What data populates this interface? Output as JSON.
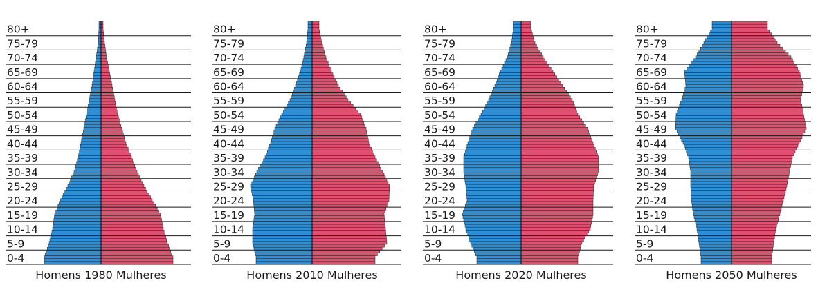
{
  "age_groups": [
    "0-4",
    "5-9",
    "10-14",
    "15-19",
    "20-24",
    "25-29",
    "30-34",
    "35-39",
    "40-44",
    "45-49",
    "50-54",
    "55-59",
    "60-64",
    "65-69",
    "70-74",
    "75-79",
    "80+"
  ],
  "men_label": "Homens",
  "women_label": "Mulheres",
  "colors": {
    "men_fill": "#2f8fd6",
    "women_fill": "#e0506f",
    "stroke": "#1a1a1a"
  },
  "chart_data": [
    {
      "type": "bar",
      "year": "1980",
      "categories": [
        "0-4",
        "5-9",
        "10-14",
        "15-19",
        "20-24",
        "25-29",
        "30-34",
        "35-39",
        "40-44",
        "45-49",
        "50-54",
        "55-59",
        "60-64",
        "65-69",
        "70-74",
        "75-79",
        "80+"
      ],
      "series": [
        {
          "name": "Homens",
          "values": [
            82,
            75,
            70,
            67,
            59,
            48,
            39,
            33,
            29,
            25,
            21,
            17,
            13,
            10,
            7,
            4,
            3
          ]
        },
        {
          "name": "Mulheres",
          "values": [
            104,
            96,
            90,
            86,
            74,
            62,
            52,
            44,
            36,
            30,
            24,
            20,
            16,
            12,
            8,
            5,
            3
          ]
        }
      ]
    },
    {
      "type": "bar",
      "year": "2010",
      "categories": [
        "0-4",
        "5-9",
        "10-14",
        "15-19",
        "20-24",
        "25-29",
        "30-34",
        "35-39",
        "40-44",
        "45-49",
        "50-54",
        "55-59",
        "60-64",
        "65-69",
        "70-74",
        "75-79",
        "80+"
      ],
      "series": [
        {
          "name": "Homens",
          "values": [
            81,
            86,
            86,
            83,
            85,
            89,
            80,
            68,
            60,
            54,
            44,
            32,
            24,
            17,
            12,
            8,
            6
          ]
        },
        {
          "name": "Mulheres",
          "values": [
            91,
            108,
            106,
            104,
            111,
            112,
            102,
            91,
            82,
            78,
            70,
            52,
            38,
            28,
            20,
            14,
            10
          ]
        }
      ]
    },
    {
      "type": "bar",
      "year": "2020",
      "categories": [
        "0-4",
        "5-9",
        "10-14",
        "15-19",
        "20-24",
        "25-29",
        "30-34",
        "35-39",
        "40-44",
        "45-49",
        "50-54",
        "55-59",
        "60-64",
        "65-69",
        "70-74",
        "75-79",
        "80+"
      ],
      "series": [
        {
          "name": "Homens",
          "values": [
            64,
            73,
            80,
            85,
            78,
            80,
            83,
            83,
            77,
            70,
            58,
            47,
            38,
            30,
            20,
            14,
            11
          ]
        },
        {
          "name": "Mulheres",
          "values": [
            82,
            88,
            100,
            104,
            104,
            105,
            112,
            112,
            104,
            96,
            82,
            74,
            60,
            46,
            32,
            20,
            14
          ]
        }
      ]
    },
    {
      "type": "bar",
      "year": "2050",
      "categories": [
        "0-4",
        "5-9",
        "10-14",
        "15-19",
        "20-24",
        "25-29",
        "30-34",
        "35-39",
        "40-44",
        "45-49",
        "50-54",
        "55-59",
        "60-64",
        "65-69",
        "70-74",
        "75-79",
        "80+"
      ],
      "series": [
        {
          "name": "Homens",
          "values": [
            44,
            47,
            50,
            55,
            58,
            59,
            59,
            62,
            70,
            81,
            80,
            72,
            66,
            68,
            52,
            40,
            28
          ]
        },
        {
          "name": "Mulheres",
          "values": [
            58,
            61,
            64,
            70,
            75,
            80,
            84,
            88,
            98,
            108,
            104,
            100,
            104,
            98,
            86,
            66,
            52
          ]
        }
      ]
    }
  ]
}
